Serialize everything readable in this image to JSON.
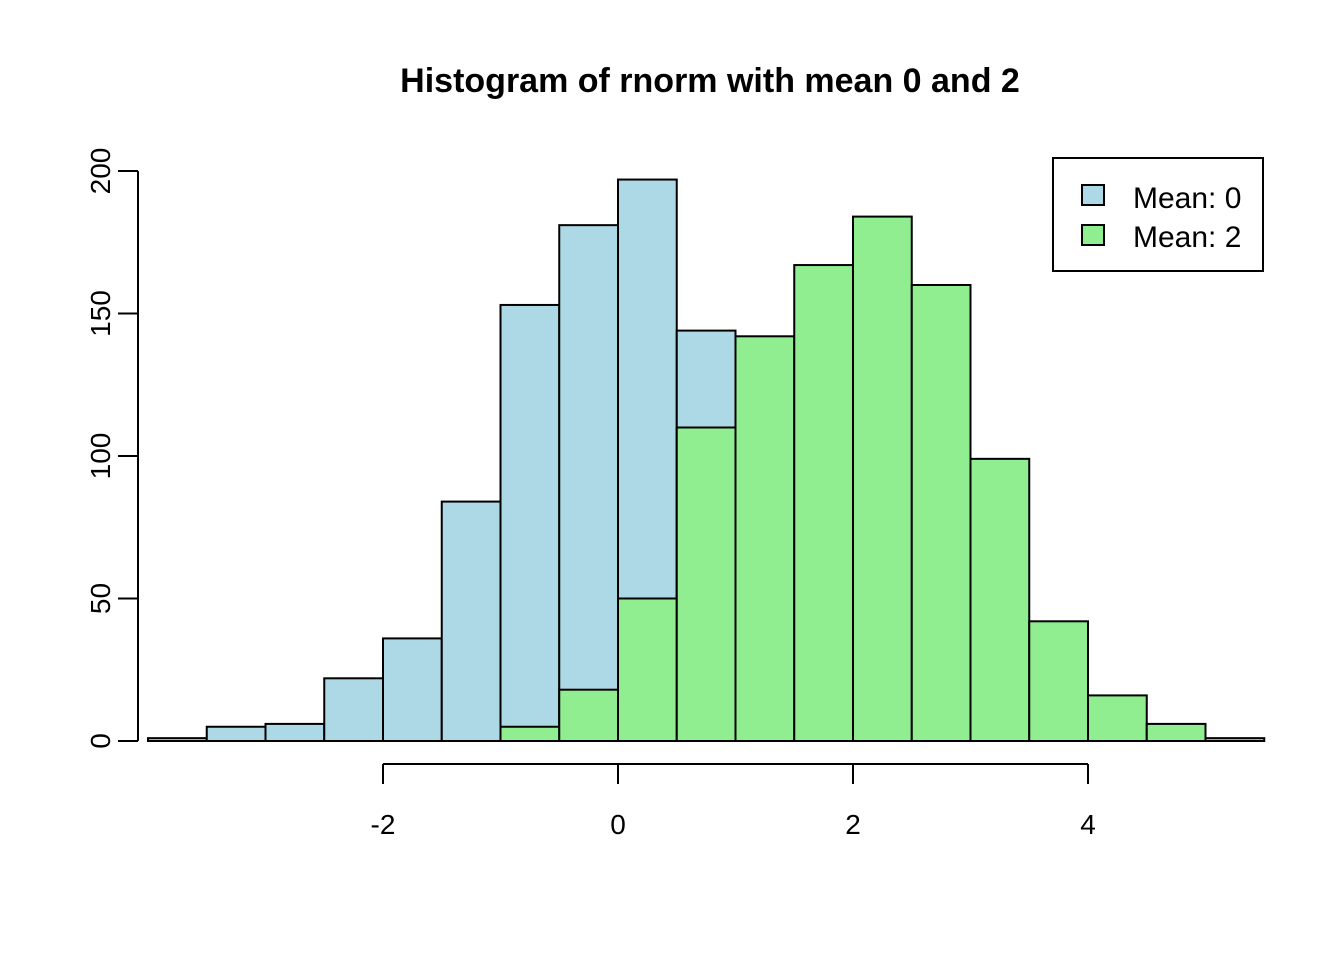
{
  "chart_data": {
    "type": "bar",
    "title": "Histogram of rnorm with mean 0 and 2",
    "xlabel": "",
    "ylabel": "",
    "xlim": [
      -4,
      5.5
    ],
    "ylim": [
      0,
      200
    ],
    "xticks": [
      -2,
      0,
      2,
      4
    ],
    "xtick_labels": [
      "-2",
      "0",
      "2",
      "4"
    ],
    "yticks": [
      0,
      50,
      100,
      150,
      200
    ],
    "ytick_labels": [
      "0",
      "50",
      "100",
      "150",
      "200"
    ],
    "bin_width": 0.5,
    "grid": false,
    "legend_position": "top-right",
    "series": [
      {
        "name": "Mean: 0",
        "color": "#add8e6",
        "bins": [
          {
            "x0": -4.0,
            "x1": -3.5,
            "count": 1
          },
          {
            "x0": -3.5,
            "x1": -3.0,
            "count": 5
          },
          {
            "x0": -3.0,
            "x1": -2.5,
            "count": 6
          },
          {
            "x0": -2.5,
            "x1": -2.0,
            "count": 22
          },
          {
            "x0": -2.0,
            "x1": -1.5,
            "count": 36
          },
          {
            "x0": -1.5,
            "x1": -1.0,
            "count": 84
          },
          {
            "x0": -1.0,
            "x1": -0.5,
            "count": 153
          },
          {
            "x0": -0.5,
            "x1": 0.0,
            "count": 181
          },
          {
            "x0": 0.0,
            "x1": 0.5,
            "count": 197
          },
          {
            "x0": 0.5,
            "x1": 1.0,
            "count": 144
          }
        ]
      },
      {
        "name": "Mean: 2",
        "color": "#90ee90",
        "bins": [
          {
            "x0": -1.0,
            "x1": -0.5,
            "count": 5
          },
          {
            "x0": -0.5,
            "x1": 0.0,
            "count": 18
          },
          {
            "x0": 0.0,
            "x1": 0.5,
            "count": 50
          },
          {
            "x0": 0.5,
            "x1": 1.0,
            "count": 110
          },
          {
            "x0": 1.0,
            "x1": 1.5,
            "count": 142
          },
          {
            "x0": 1.5,
            "x1": 2.0,
            "count": 167
          },
          {
            "x0": 2.0,
            "x1": 2.5,
            "count": 184
          },
          {
            "x0": 2.5,
            "x1": 3.0,
            "count": 160
          },
          {
            "x0": 3.0,
            "x1": 3.5,
            "count": 99
          },
          {
            "x0": 3.5,
            "x1": 4.0,
            "count": 42
          },
          {
            "x0": 4.0,
            "x1": 4.5,
            "count": 16
          },
          {
            "x0": 4.5,
            "x1": 5.0,
            "count": 6
          },
          {
            "x0": 5.0,
            "x1": 5.5,
            "count": 1
          }
        ]
      }
    ]
  }
}
